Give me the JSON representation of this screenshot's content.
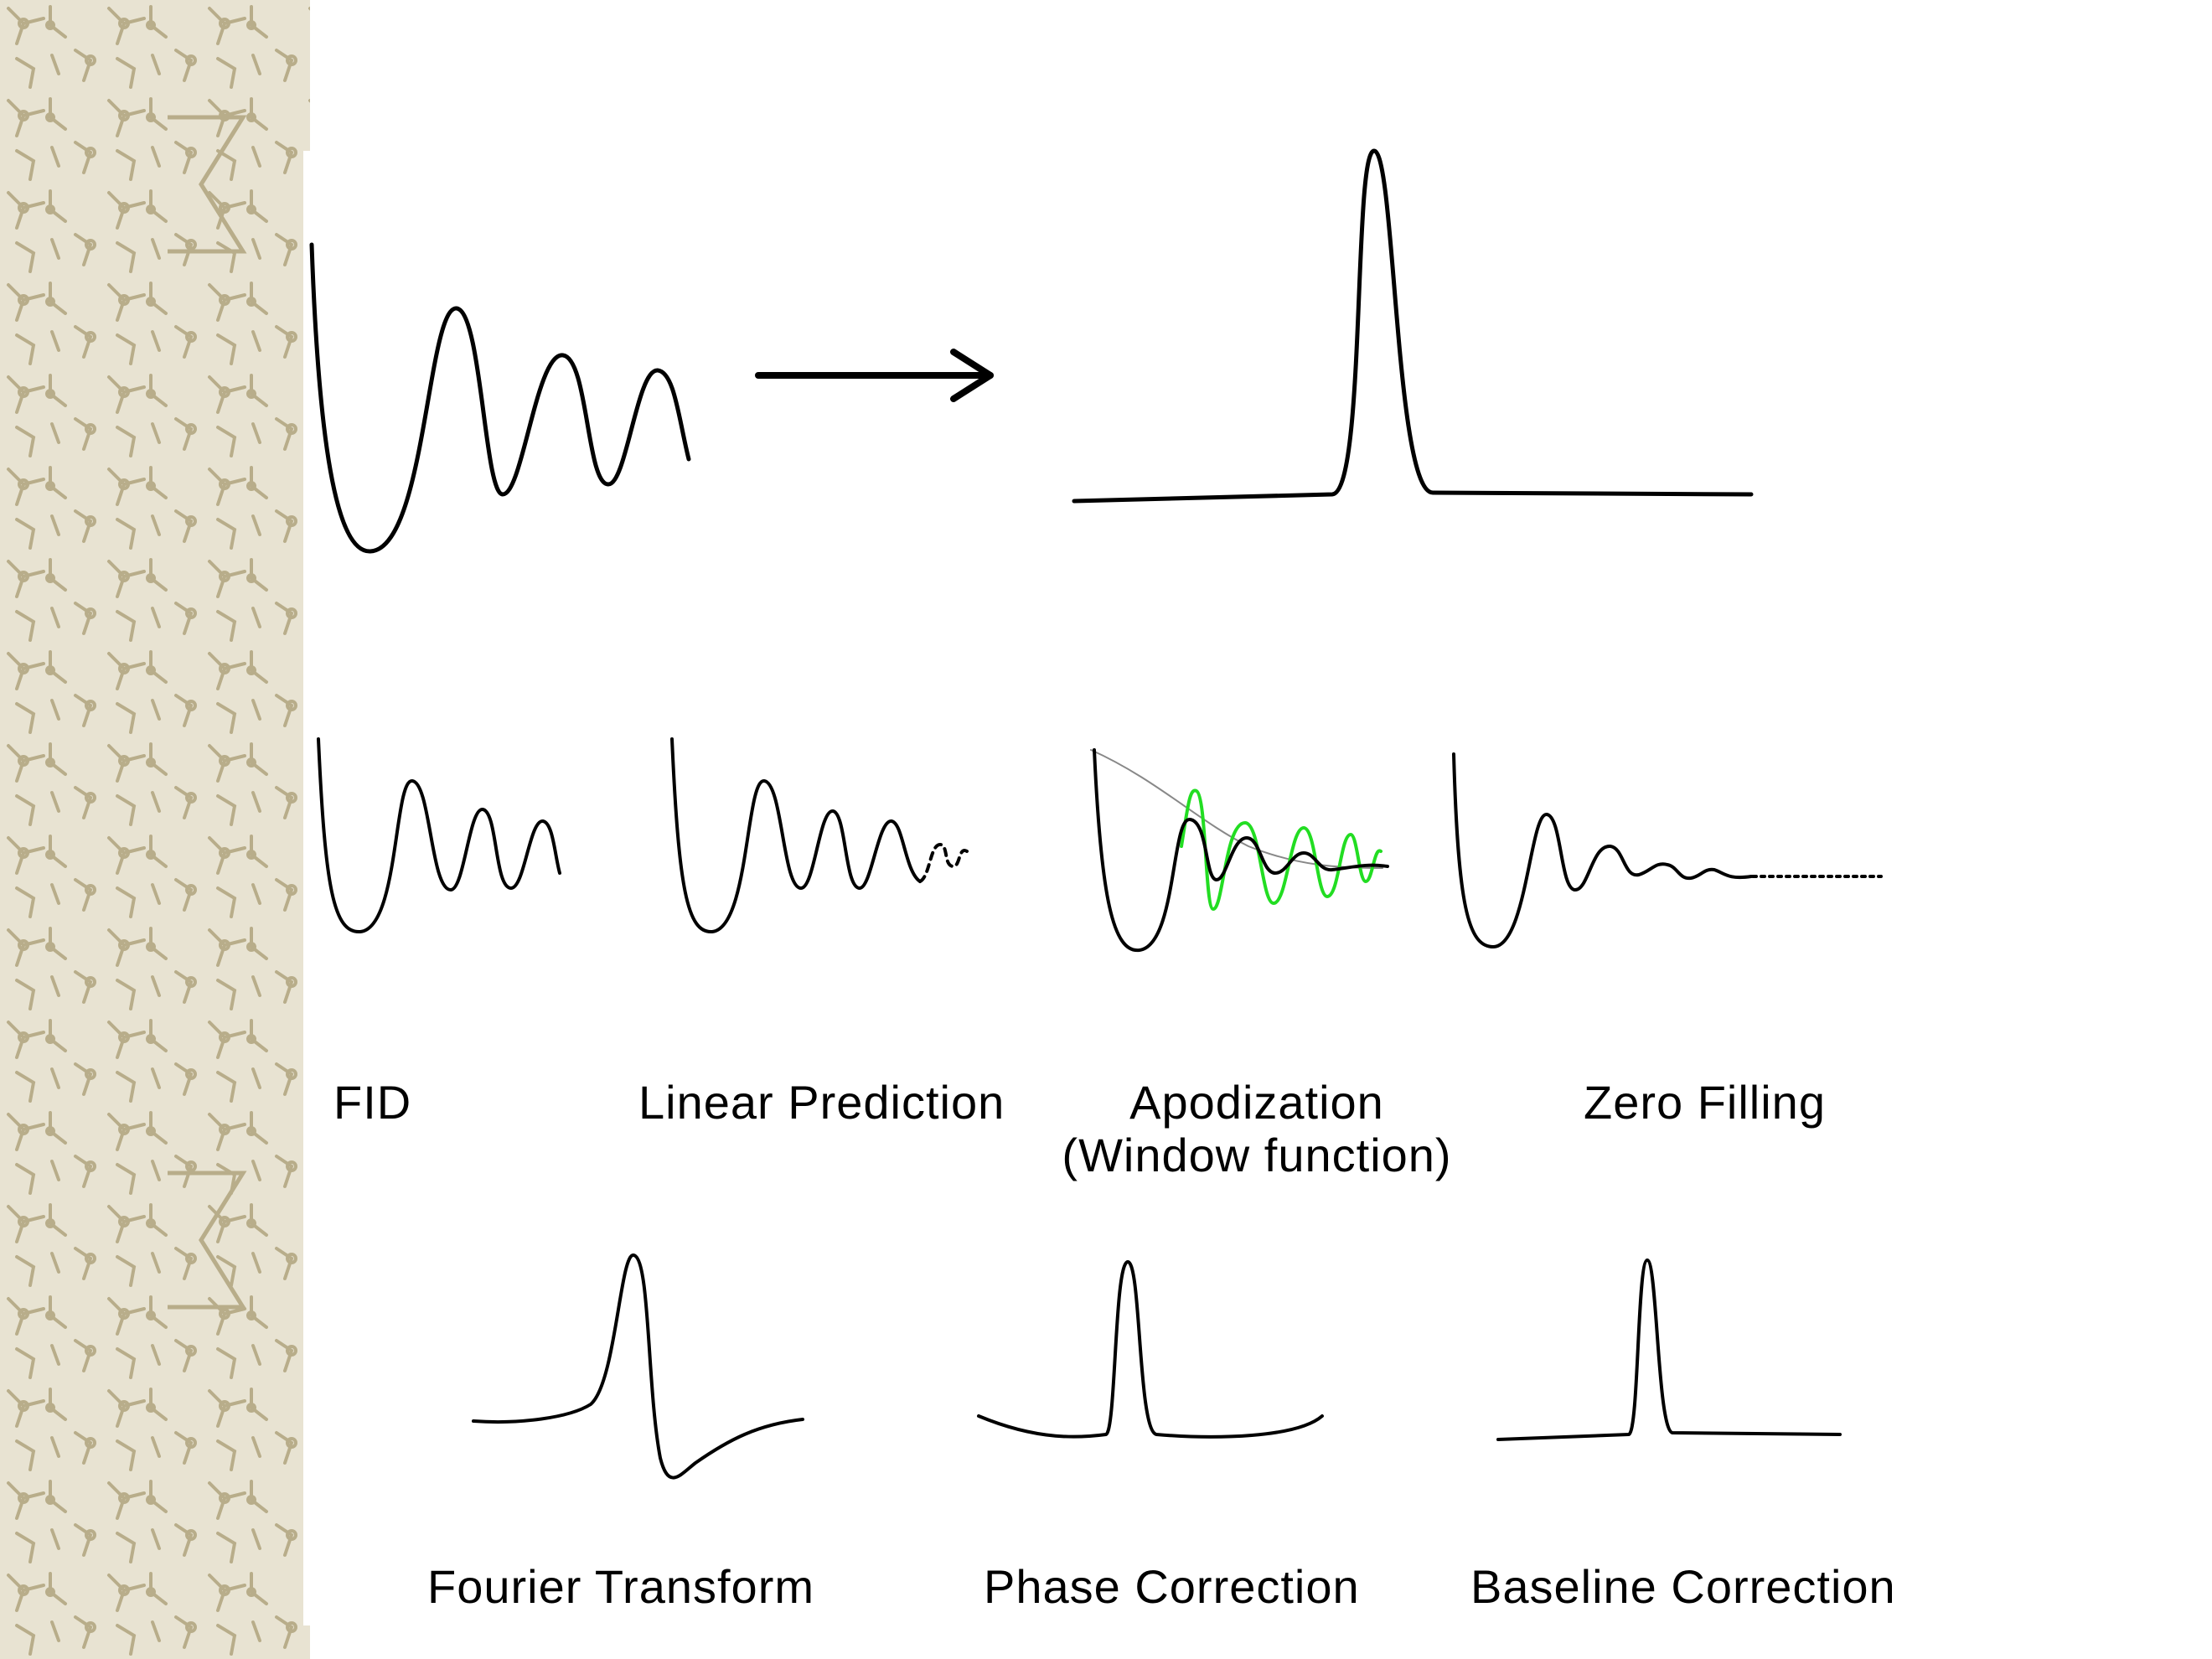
{
  "labels": {
    "fid": "FID",
    "linear_prediction": "Linear Prediction",
    "apodization": "Apodization",
    "window_function": "(Window function)",
    "zero_filling": "Zero Filling",
    "fourier_transform": "Fourier Transform",
    "phase_correction": "Phase Correction",
    "baseline_correction": "Baseline Correction"
  },
  "colors": {
    "line": "#000000",
    "window_signal": "#22dd22",
    "window_envelope": "#888888",
    "pattern_light": "#e8e3d2",
    "pattern_dark": "#b8ad8a"
  },
  "icons": {
    "process_arrow": "right-arrow-icon",
    "background": "molecular-pattern-border"
  }
}
